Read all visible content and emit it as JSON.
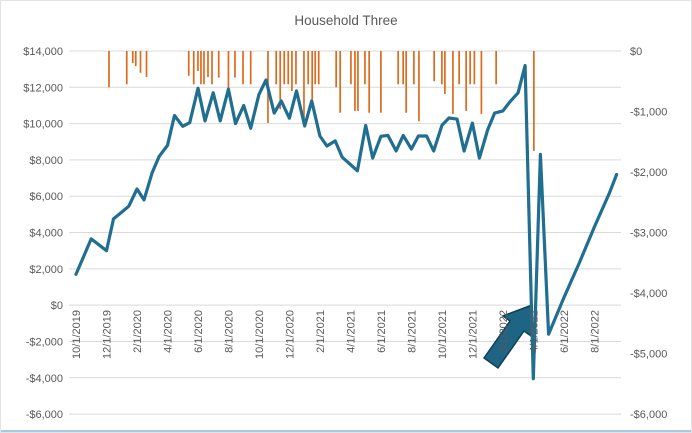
{
  "title": "Household Three",
  "colors": {
    "line": "#206e90",
    "bars": "#dd6b1d",
    "grid": "#d9d9d9",
    "axis_text": "#595959",
    "title_text": "#595959",
    "arrow_fill": "#1e6484",
    "arrow_stroke": "#123f52",
    "bottom_edge": "#aac8e6"
  },
  "chart_data": {
    "type": "line",
    "title": "Household Three",
    "left_axis": {
      "min": -6000,
      "max": 14000,
      "step": 2000,
      "ticks": [
        "$14,000",
        "$12,000",
        "$10,000",
        "$8,000",
        "$6,000",
        "$4,000",
        "$2,000",
        "$0",
        "-$2,000",
        "-$4,000",
        "-$6,000"
      ]
    },
    "right_axis": {
      "min": -6000,
      "max": 0,
      "step": 1000,
      "ticks": [
        "$0",
        "-$1,000",
        "-$2,000",
        "-$3,000",
        "-$4,000",
        "-$5,000",
        "-$6,000"
      ]
    },
    "x_axis": {
      "ticks": [
        "10/1/2019",
        "12/1/2019",
        "2/1/2020",
        "4/1/2020",
        "6/1/2020",
        "8/1/2020",
        "10/1/2020",
        "12/1/2020",
        "2/1/2021",
        "4/1/2021",
        "6/1/2021",
        "8/1/2021",
        "10/1/2021",
        "12/1/2021",
        "2/1/2022",
        "4/1/2022",
        "6/1/2022",
        "8/1/2022"
      ]
    },
    "grid": true,
    "legend": "none",
    "annotation": "block arrow pointing up-right at the balance crash in spring 2022",
    "series": [
      {
        "name": "line_series",
        "type": "line",
        "axis": "left",
        "points": [
          {
            "d": "2019-10-01",
            "v": 1700
          },
          {
            "d": "2019-11-01",
            "v": 3650
          },
          {
            "d": "2019-12-01",
            "v": 3000
          },
          {
            "d": "2019-12-15",
            "v": 4750
          },
          {
            "d": "2020-01-15",
            "v": 5450
          },
          {
            "d": "2020-02-01",
            "v": 6400
          },
          {
            "d": "2020-02-15",
            "v": 5800
          },
          {
            "d": "2020-03-01",
            "v": 7300
          },
          {
            "d": "2020-03-15",
            "v": 8200
          },
          {
            "d": "2020-04-01",
            "v": 8800
          },
          {
            "d": "2020-04-15",
            "v": 10450
          },
          {
            "d": "2020-05-01",
            "v": 9850
          },
          {
            "d": "2020-05-15",
            "v": 10050
          },
          {
            "d": "2020-06-01",
            "v": 11950
          },
          {
            "d": "2020-06-15",
            "v": 10150
          },
          {
            "d": "2020-07-01",
            "v": 11700
          },
          {
            "d": "2020-07-15",
            "v": 10150
          },
          {
            "d": "2020-08-01",
            "v": 11900
          },
          {
            "d": "2020-08-15",
            "v": 10000
          },
          {
            "d": "2020-09-01",
            "v": 11000
          },
          {
            "d": "2020-09-15",
            "v": 9750
          },
          {
            "d": "2020-10-01",
            "v": 11600
          },
          {
            "d": "2020-10-15",
            "v": 12400
          },
          {
            "d": "2020-11-01",
            "v": 10580
          },
          {
            "d": "2020-11-15",
            "v": 11250
          },
          {
            "d": "2020-12-01",
            "v": 10300
          },
          {
            "d": "2020-12-15",
            "v": 11800
          },
          {
            "d": "2021-01-01",
            "v": 9870
          },
          {
            "d": "2021-01-15",
            "v": 11250
          },
          {
            "d": "2021-02-01",
            "v": 9320
          },
          {
            "d": "2021-02-15",
            "v": 8770
          },
          {
            "d": "2021-03-01",
            "v": 9050
          },
          {
            "d": "2021-03-15",
            "v": 8150
          },
          {
            "d": "2021-04-01",
            "v": 7750
          },
          {
            "d": "2021-04-15",
            "v": 7400
          },
          {
            "d": "2021-05-01",
            "v": 9900
          },
          {
            "d": "2021-05-15",
            "v": 8100
          },
          {
            "d": "2021-06-01",
            "v": 9300
          },
          {
            "d": "2021-06-15",
            "v": 9350
          },
          {
            "d": "2021-07-01",
            "v": 8500
          },
          {
            "d": "2021-07-15",
            "v": 9350
          },
          {
            "d": "2021-08-01",
            "v": 8600
          },
          {
            "d": "2021-08-15",
            "v": 9320
          },
          {
            "d": "2021-09-01",
            "v": 9320
          },
          {
            "d": "2021-09-15",
            "v": 8490
          },
          {
            "d": "2021-10-01",
            "v": 9900
          },
          {
            "d": "2021-10-15",
            "v": 10310
          },
          {
            "d": "2021-11-01",
            "v": 10250
          },
          {
            "d": "2021-11-15",
            "v": 8490
          },
          {
            "d": "2021-12-01",
            "v": 10030
          },
          {
            "d": "2021-12-15",
            "v": 8100
          },
          {
            "d": "2022-01-01",
            "v": 9650
          },
          {
            "d": "2022-01-15",
            "v": 10580
          },
          {
            "d": "2022-02-01",
            "v": 10700
          },
          {
            "d": "2022-02-15",
            "v": 11200
          },
          {
            "d": "2022-03-01",
            "v": 11700
          },
          {
            "d": "2022-03-15",
            "v": 13200
          },
          {
            "d": "2022-04-01",
            "v": -4050
          },
          {
            "d": "2022-04-15",
            "v": 8300
          },
          {
            "d": "2022-05-01",
            "v": -1600
          },
          {
            "d": "2022-06-01",
            "v": 400
          },
          {
            "d": "2022-07-01",
            "v": 2300
          },
          {
            "d": "2022-08-01",
            "v": 4300
          },
          {
            "d": "2022-09-01",
            "v": 6200
          },
          {
            "d": "2022-09-15",
            "v": 7200
          }
        ]
      },
      {
        "name": "bar_series",
        "type": "bar",
        "axis": "right",
        "points": [
          {
            "d": "2019-12-06",
            "v": -600
          },
          {
            "d": "2020-01-11",
            "v": -550
          },
          {
            "d": "2020-01-23",
            "v": -200
          },
          {
            "d": "2020-01-29",
            "v": -250
          },
          {
            "d": "2020-02-08",
            "v": -360
          },
          {
            "d": "2020-02-20",
            "v": -430
          },
          {
            "d": "2020-05-13",
            "v": -410
          },
          {
            "d": "2020-05-23",
            "v": -550
          },
          {
            "d": "2020-06-01",
            "v": -330
          },
          {
            "d": "2020-06-07",
            "v": -550
          },
          {
            "d": "2020-06-13",
            "v": -550
          },
          {
            "d": "2020-06-21",
            "v": -430
          },
          {
            "d": "2020-06-29",
            "v": -550
          },
          {
            "d": "2020-07-12",
            "v": -440
          },
          {
            "d": "2020-08-01",
            "v": -660
          },
          {
            "d": "2020-08-14",
            "v": -440
          },
          {
            "d": "2020-08-30",
            "v": -550
          },
          {
            "d": "2020-09-15",
            "v": -550
          },
          {
            "d": "2020-10-19",
            "v": -1190
          },
          {
            "d": "2020-11-05",
            "v": -550
          },
          {
            "d": "2020-11-13",
            "v": -960
          },
          {
            "d": "2020-11-21",
            "v": -550
          },
          {
            "d": "2020-11-29",
            "v": -550
          },
          {
            "d": "2020-12-06",
            "v": -660
          },
          {
            "d": "2020-12-14",
            "v": -550
          },
          {
            "d": "2020-12-30",
            "v": -1160
          },
          {
            "d": "2021-01-08",
            "v": -550
          },
          {
            "d": "2021-01-16",
            "v": -800
          },
          {
            "d": "2021-01-22",
            "v": -550
          },
          {
            "d": "2021-01-29",
            "v": -550
          },
          {
            "d": "2021-03-03",
            "v": -600
          },
          {
            "d": "2021-03-11",
            "v": -1020
          },
          {
            "d": "2021-04-02",
            "v": -550
          },
          {
            "d": "2021-04-10",
            "v": -990
          },
          {
            "d": "2021-04-16",
            "v": -990
          },
          {
            "d": "2021-04-30",
            "v": -550
          },
          {
            "d": "2021-05-08",
            "v": -1020
          },
          {
            "d": "2021-06-01",
            "v": -1020
          },
          {
            "d": "2021-07-05",
            "v": -550
          },
          {
            "d": "2021-07-15",
            "v": -550
          },
          {
            "d": "2021-07-21",
            "v": -1020
          },
          {
            "d": "2021-08-06",
            "v": -550
          },
          {
            "d": "2021-08-16",
            "v": -1160
          },
          {
            "d": "2021-09-16",
            "v": -500
          },
          {
            "d": "2021-10-01",
            "v": -550
          },
          {
            "d": "2021-10-07",
            "v": -710
          },
          {
            "d": "2021-10-23",
            "v": -1040
          },
          {
            "d": "2021-11-05",
            "v": -550
          },
          {
            "d": "2021-11-19",
            "v": -990
          },
          {
            "d": "2021-11-27",
            "v": -550
          },
          {
            "d": "2021-12-05",
            "v": -550
          },
          {
            "d": "2021-12-19",
            "v": -1040
          },
          {
            "d": "2022-01-18",
            "v": -550
          },
          {
            "d": "2022-04-02",
            "v": -1650
          }
        ]
      }
    ]
  }
}
